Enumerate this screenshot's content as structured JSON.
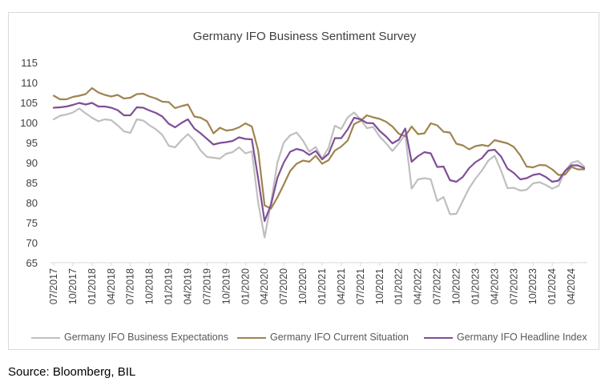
{
  "source": "Source: Bloomberg, BIL",
  "chart_data": {
    "type": "line",
    "title": "Germany IFO Business Sentiment Survey",
    "xlabel": "",
    "ylabel": "",
    "ylim": [
      65,
      115
    ],
    "yticks": [
      65,
      70,
      75,
      80,
      85,
      90,
      95,
      100,
      105,
      110,
      115
    ],
    "x_ticks": [
      "07/2017",
      "10/2017",
      "01/2018",
      "04/2018",
      "07/2018",
      "10/2018",
      "01/2019",
      "04/2019",
      "07/2019",
      "10/2019",
      "01/2020",
      "04/2020",
      "07/2020",
      "10/2020",
      "01/2021",
      "04/2021",
      "07/2021",
      "10/2021",
      "01/2022",
      "04/2022",
      "07/2022",
      "10/2022",
      "01/2023",
      "04/2023",
      "07/2023",
      "10/2023",
      "01/2024",
      "04/2024"
    ],
    "x": [
      "2017-07",
      "2017-08",
      "2017-09",
      "2017-10",
      "2017-11",
      "2017-12",
      "2018-01",
      "2018-02",
      "2018-03",
      "2018-04",
      "2018-05",
      "2018-06",
      "2018-07",
      "2018-08",
      "2018-09",
      "2018-10",
      "2018-11",
      "2018-12",
      "2019-01",
      "2019-02",
      "2019-03",
      "2019-04",
      "2019-05",
      "2019-06",
      "2019-07",
      "2019-08",
      "2019-09",
      "2019-10",
      "2019-11",
      "2019-12",
      "2020-01",
      "2020-02",
      "2020-03",
      "2020-04",
      "2020-05",
      "2020-06",
      "2020-07",
      "2020-08",
      "2020-09",
      "2020-10",
      "2020-11",
      "2020-12",
      "2021-01",
      "2021-02",
      "2021-03",
      "2021-04",
      "2021-05",
      "2021-06",
      "2021-07",
      "2021-08",
      "2021-09",
      "2021-10",
      "2021-11",
      "2021-12",
      "2022-01",
      "2022-02",
      "2022-03",
      "2022-04",
      "2022-05",
      "2022-06",
      "2022-07",
      "2022-08",
      "2022-09",
      "2022-10",
      "2022-11",
      "2022-12",
      "2023-01",
      "2023-02",
      "2023-03",
      "2023-04",
      "2023-05",
      "2023-06",
      "2023-07",
      "2023-08",
      "2023-09",
      "2023-10",
      "2023-11",
      "2023-12",
      "2024-01",
      "2024-02",
      "2024-03",
      "2024-04",
      "2024-05",
      "2024-06"
    ],
    "grid": false,
    "legend_position": "bottom",
    "series": [
      {
        "name": "Germany IFO Business Expectations",
        "color": "#bfbfbf",
        "values": [
          100.8,
          101.7,
          102.0,
          102.5,
          103.5,
          102.3,
          101.2,
          100.3,
          100.8,
          100.6,
          99.3,
          97.8,
          97.4,
          100.8,
          100.5,
          99.3,
          98.3,
          96.9,
          94.2,
          93.8,
          95.6,
          97.1,
          95.5,
          93.0,
          91.4,
          91.2,
          91.0,
          92.2,
          92.6,
          93.8,
          92.3,
          92.8,
          80.0,
          71.3,
          80.0,
          90.0,
          95.0,
          96.8,
          97.5,
          95.5,
          92.7,
          93.9,
          91.0,
          93.7,
          99.2,
          98.4,
          101.3,
          102.5,
          100.8,
          98.6,
          98.9,
          96.5,
          94.8,
          92.9,
          94.8,
          97.0,
          83.5,
          85.8,
          86.1,
          85.8,
          80.4,
          81.4,
          77.1,
          77.2,
          80.4,
          83.6,
          86.0,
          88.0,
          90.5,
          91.7,
          88.0,
          83.6,
          83.7,
          83.0,
          83.2,
          84.8,
          85.1,
          84.4,
          83.5,
          84.2,
          87.9,
          89.9,
          90.4,
          89.0
        ]
      },
      {
        "name": "Germany IFO Current Situation",
        "color": "#a0844f",
        "values": [
          106.7,
          105.8,
          105.8,
          106.4,
          106.7,
          107.1,
          108.6,
          107.5,
          106.9,
          106.5,
          106.9,
          106.0,
          106.2,
          107.1,
          107.2,
          106.5,
          106.0,
          105.2,
          105.1,
          103.6,
          104.1,
          104.5,
          101.5,
          101.2,
          100.3,
          97.3,
          98.7,
          98.0,
          98.2,
          98.8,
          99.8,
          99.0,
          93.0,
          79.3,
          78.5,
          81.3,
          84.5,
          87.9,
          89.7,
          90.5,
          90.2,
          91.7,
          89.7,
          90.6,
          93.0,
          94.0,
          95.5,
          99.6,
          100.4,
          101.8,
          101.3,
          100.9,
          100.2,
          99.0,
          97.2,
          96.6,
          99.0,
          97.1,
          97.3,
          99.8,
          99.3,
          97.7,
          97.5,
          94.7,
          94.3,
          93.3,
          94.1,
          94.4,
          94.1,
          95.6,
          95.2,
          94.8,
          93.9,
          91.8,
          89.0,
          88.8,
          89.4,
          89.3,
          88.3,
          86.9,
          87.0,
          88.9,
          88.3,
          88.3
        ]
      },
      {
        "name": "Germany IFO Headline Index",
        "color": "#7f4f97",
        "values": [
          103.7,
          103.8,
          104.0,
          104.4,
          104.9,
          104.5,
          104.9,
          104.0,
          104.0,
          103.7,
          103.1,
          101.8,
          101.8,
          103.8,
          103.7,
          103.0,
          102.4,
          101.5,
          99.7,
          98.8,
          99.9,
          100.8,
          98.5,
          97.3,
          95.9,
          94.5,
          94.9,
          95.1,
          95.4,
          96.3,
          95.9,
          95.8,
          86.0,
          75.4,
          79.5,
          86.2,
          90.0,
          92.7,
          93.4,
          93.0,
          91.9,
          92.9,
          90.8,
          92.2,
          96.1,
          96.1,
          98.3,
          101.2,
          100.8,
          99.9,
          99.8,
          97.9,
          96.5,
          94.8,
          95.7,
          98.5,
          90.2,
          91.6,
          92.6,
          92.3,
          88.9,
          89.0,
          85.6,
          85.2,
          86.4,
          88.6,
          90.1,
          91.1,
          93.0,
          93.2,
          91.5,
          88.5,
          87.4,
          85.8,
          86.1,
          86.9,
          87.2,
          86.4,
          85.2,
          85.5,
          87.9,
          89.3,
          89.3,
          88.6
        ]
      }
    ]
  }
}
